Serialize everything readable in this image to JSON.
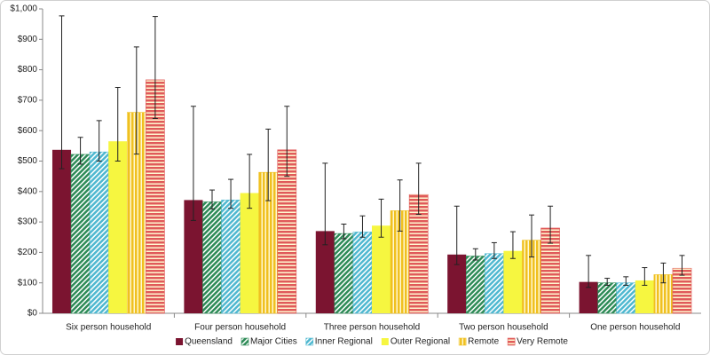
{
  "chart_data": {
    "type": "bar",
    "categories": [
      "Six person household",
      "Four person household",
      "Three person household",
      "Two person household",
      "One person household"
    ],
    "series": [
      {
        "name": "Queensland",
        "color": "#7b1430",
        "pattern": "solid",
        "values": [
          537,
          372,
          270,
          193,
          103
        ],
        "low": [
          475,
          305,
          225,
          160,
          85
        ],
        "high": [
          977,
          680,
          493,
          352,
          190
        ]
      },
      {
        "name": "Major Cities",
        "color": "#2e8b57",
        "pattern": "diagonal",
        "values": [
          522,
          366,
          262,
          188,
          100
        ],
        "low": [
          490,
          343,
          245,
          175,
          92
        ],
        "high": [
          578,
          405,
          293,
          212,
          115
        ]
      },
      {
        "name": "Inner Regional",
        "color": "#4fb8d0",
        "pattern": "diagonal",
        "values": [
          530,
          372,
          267,
          196,
          100
        ],
        "low": [
          500,
          345,
          250,
          180,
          92
        ],
        "high": [
          633,
          440,
          320,
          232,
          120
        ]
      },
      {
        "name": "Outer Regional",
        "color": "#f6f640",
        "pattern": "solid",
        "values": [
          565,
          395,
          288,
          205,
          108
        ],
        "low": [
          500,
          345,
          250,
          180,
          92
        ],
        "high": [
          742,
          522,
          375,
          268,
          150
        ]
      },
      {
        "name": "Remote",
        "color": "#f0c020",
        "pattern": "vertical",
        "values": [
          660,
          463,
          337,
          240,
          127
        ],
        "low": [
          523,
          370,
          270,
          185,
          100
        ],
        "high": [
          875,
          605,
          438,
          323,
          165
        ]
      },
      {
        "name": "Very Remote",
        "color": "#e05a5a",
        "pattern": "horizontal",
        "values": [
          767,
          537,
          390,
          280,
          148
        ],
        "low": [
          640,
          450,
          325,
          230,
          125
        ],
        "high": [
          975,
          680,
          493,
          352,
          190
        ]
      }
    ],
    "ylim": [
      0,
      1000
    ],
    "yticks": [
      {
        "value": 0,
        "label": "$0"
      },
      {
        "value": 100,
        "label": "$100"
      },
      {
        "value": 200,
        "label": "$200"
      },
      {
        "value": 300,
        "label": "$300"
      },
      {
        "value": 400,
        "label": "$400"
      },
      {
        "value": 500,
        "label": "$500"
      },
      {
        "value": 600,
        "label": "$600"
      },
      {
        "value": 700,
        "label": "$700"
      },
      {
        "value": 800,
        "label": "$800"
      },
      {
        "value": 900,
        "label": "$900"
      },
      {
        "value": 1000,
        "label": "$1,000"
      }
    ],
    "grid": false,
    "legend": "bottom"
  }
}
